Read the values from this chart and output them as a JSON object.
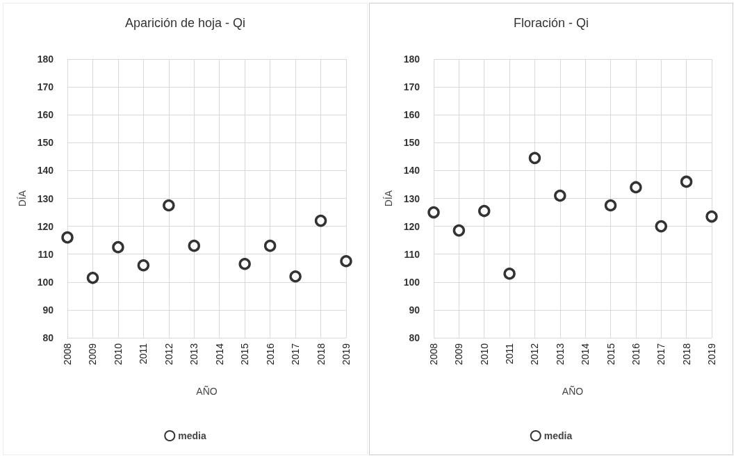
{
  "chart_data": [
    {
      "type": "scatter",
      "title": "Aparición de hoja - Qi",
      "xlabel": "AÑO",
      "ylabel": "DÍA",
      "categories": [
        "2008",
        "2009",
        "2010",
        "2011",
        "2012",
        "2013",
        "2014",
        "2015",
        "2016",
        "2017",
        "2018",
        "2019"
      ],
      "series": [
        {
          "name": "media",
          "color": "#000000",
          "values": [
            116,
            101.5,
            112.5,
            106,
            127.5,
            113,
            null,
            106.5,
            113,
            102,
            122,
            107.5
          ]
        }
      ],
      "ylim": [
        80,
        180
      ],
      "yticks": [
        80,
        90,
        100,
        110,
        120,
        130,
        140,
        150,
        160,
        170,
        180
      ],
      "grid": true,
      "legend": "bottom",
      "marker": "circle"
    },
    {
      "type": "scatter",
      "title": "Floración - Qi",
      "xlabel": "AÑO",
      "ylabel": "DÍA",
      "categories": [
        "2008",
        "2009",
        "2010",
        "2011",
        "2012",
        "2013",
        "2014",
        "2015",
        "2016",
        "2017",
        "2018",
        "2019"
      ],
      "series": [
        {
          "name": "media",
          "color": "#000000",
          "values": [
            125,
            118.5,
            125.5,
            103,
            144.5,
            131,
            null,
            127.5,
            134,
            120,
            136,
            123.5
          ]
        }
      ],
      "ylim": [
        80,
        180
      ],
      "yticks": [
        80,
        90,
        100,
        110,
        120,
        130,
        140,
        150,
        160,
        170,
        180
      ],
      "grid": true,
      "legend": "bottom",
      "marker": "circle"
    }
  ]
}
